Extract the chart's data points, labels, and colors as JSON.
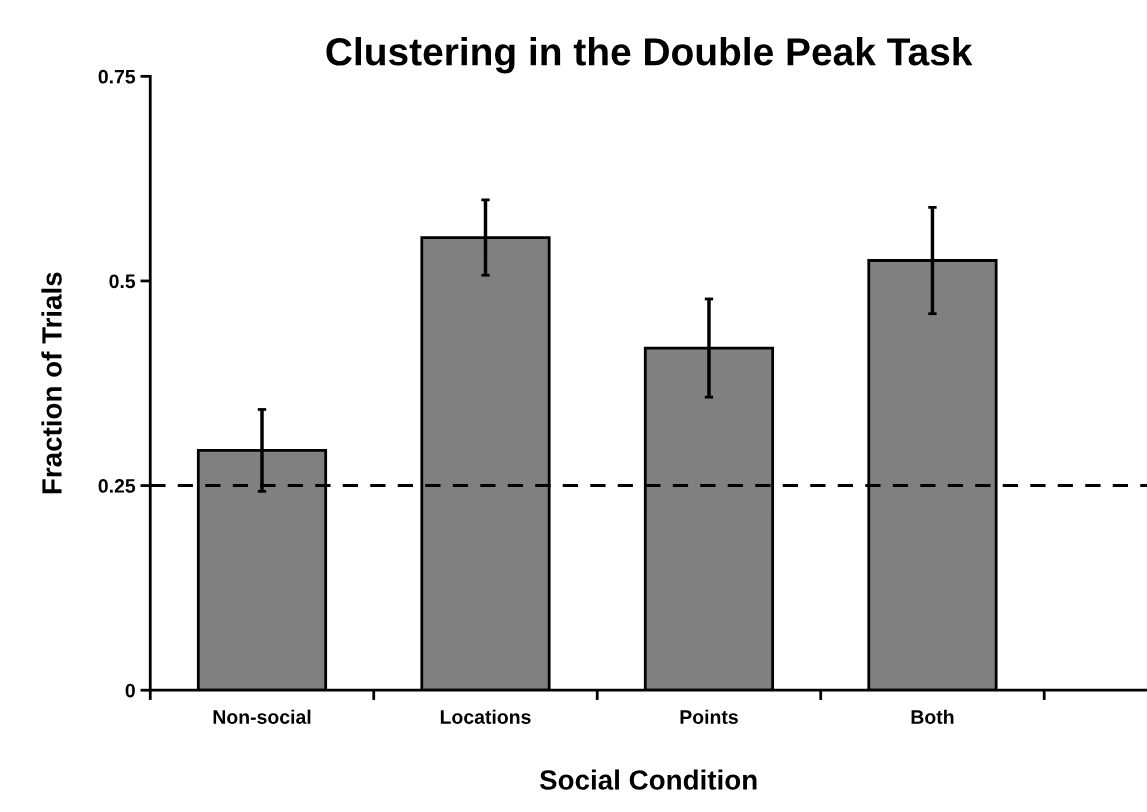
{
  "chart_data": {
    "type": "bar",
    "title": "Clustering in the Double Peak Task",
    "xlabel": "Social Condition",
    "ylabel": "Fraction of Trials",
    "categories": [
      "Non-social",
      "Locations",
      "Points",
      "Both"
    ],
    "values": [
      0.293,
      0.553,
      0.418,
      0.525
    ],
    "errors": [
      0.05,
      0.046,
      0.06,
      0.065
    ],
    "color": "#808080",
    "ylim": [
      0,
      0.75
    ],
    "yticks": [
      0,
      0.25,
      0.5,
      0.75
    ],
    "ref_lines": [
      {
        "axis": "y",
        "value": 0.25,
        "color": "#000000",
        "line_style": "dashed"
      }
    ],
    "grid": false,
    "legend": false
  }
}
